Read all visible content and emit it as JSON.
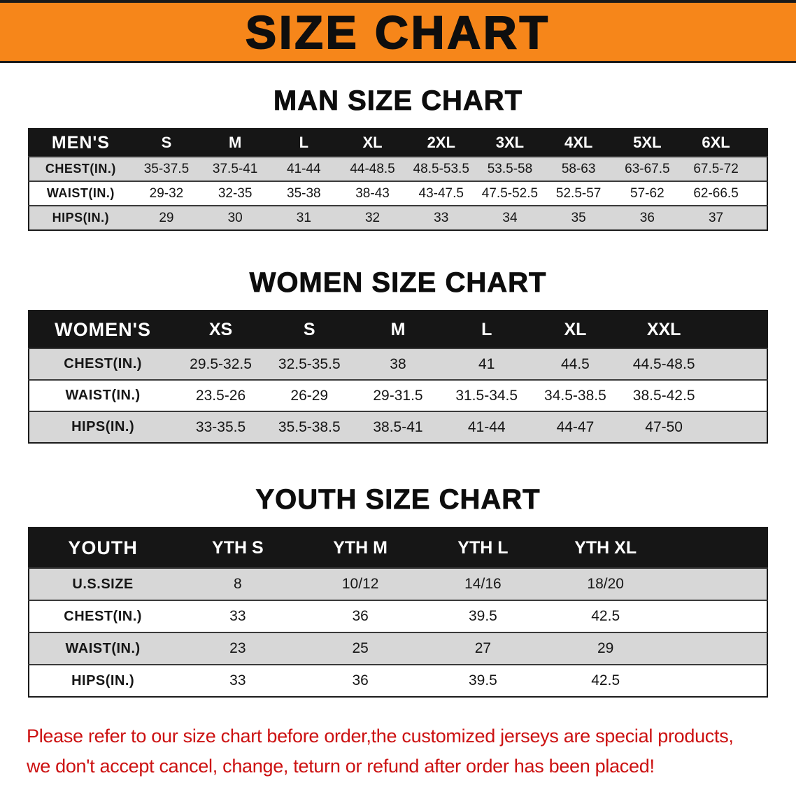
{
  "banner": {
    "title": "SIZE CHART"
  },
  "colors": {
    "banner_bg": "#F6861A",
    "header_bg": "#161616",
    "stripe": "#D7D7D7",
    "note_text": "#CC1111"
  },
  "chart_data": [
    {
      "type": "table",
      "title": "MAN SIZE CHART",
      "columns": [
        "MEN'S",
        "S",
        "M",
        "L",
        "XL",
        "2XL",
        "3XL",
        "4XL",
        "5XL",
        "6XL"
      ],
      "rows": [
        [
          "CHEST(IN.)",
          "35-37.5",
          "37.5-41",
          "41-44",
          "44-48.5",
          "48.5-53.5",
          "53.5-58",
          "58-63",
          "63-67.5",
          "67.5-72"
        ],
        [
          "WAIST(IN.)",
          "29-32",
          "32-35",
          "35-38",
          "38-43",
          "43-47.5",
          "47.5-52.5",
          "52.5-57",
          "57-62",
          "62-66.5"
        ],
        [
          "HIPS(IN.)",
          "29",
          "30",
          "31",
          "32",
          "33",
          "34",
          "35",
          "36",
          "37"
        ]
      ]
    },
    {
      "type": "table",
      "title": "WOMEN SIZE CHART",
      "columns": [
        "WOMEN'S",
        "XS",
        "S",
        "M",
        "L",
        "XL",
        "XXL"
      ],
      "rows": [
        [
          "CHEST(IN.)",
          "29.5-32.5",
          "32.5-35.5",
          "38",
          "41",
          "44.5",
          "44.5-48.5"
        ],
        [
          "WAIST(IN.)",
          "23.5-26",
          "26-29",
          "29-31.5",
          "31.5-34.5",
          "34.5-38.5",
          "38.5-42.5"
        ],
        [
          "HIPS(IN.)",
          "33-35.5",
          "35.5-38.5",
          "38.5-41",
          "41-44",
          "44-47",
          "47-50"
        ]
      ]
    },
    {
      "type": "table",
      "title": "YOUTH SIZE CHART",
      "columns": [
        "YOUTH",
        "YTH S",
        "YTH M",
        "YTH L",
        "YTH XL"
      ],
      "rows": [
        [
          "U.S.SIZE",
          "8",
          "10/12",
          "14/16",
          "18/20"
        ],
        [
          "CHEST(IN.)",
          "33",
          "36",
          "39.5",
          "42.5"
        ],
        [
          "WAIST(IN.)",
          "23",
          "25",
          "27",
          "29"
        ],
        [
          "HIPS(IN.)",
          "33",
          "36",
          "39.5",
          "42.5"
        ]
      ]
    }
  ],
  "note": {
    "line1": "Please refer to our size chart before order,the customized jerseys are special products,",
    "line2": "we don't accept cancel, change, teturn or refund after order has been placed!"
  }
}
